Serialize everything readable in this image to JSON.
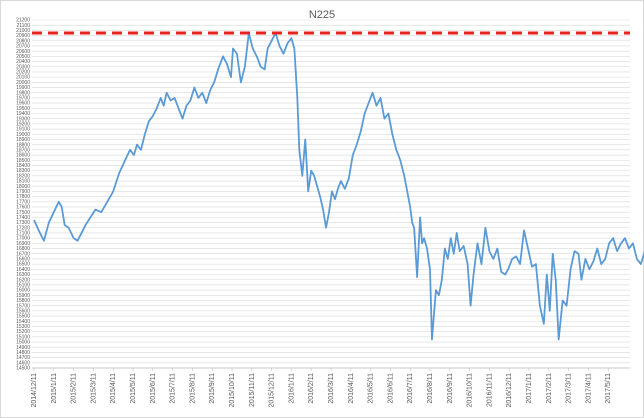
{
  "chart_data": {
    "type": "line",
    "title": "N225",
    "xlabel": "",
    "ylabel": "",
    "ylim": [
      14500,
      21200
    ],
    "y_tick_step": 100,
    "x_tick_labels": [
      "2014/12/11",
      "2015/1/11",
      "2015/2/11",
      "2015/3/11",
      "2015/4/11",
      "2015/5/11",
      "2015/6/11",
      "2015/7/11",
      "2015/8/11",
      "2015/9/11",
      "2015/10/11",
      "2015/11/11",
      "2015/12/11",
      "2016/1/11",
      "2016/2/11",
      "2016/3/11",
      "2016/4/11",
      "2016/5/11",
      "2016/6/11",
      "2016/7/11",
      "2016/8/11",
      "2016/9/11",
      "2016/10/11",
      "2016/11/11",
      "2016/12/11",
      "2017/1/11",
      "2017/2/11",
      "2017/3/11",
      "2017/4/11",
      "2017/5/11"
    ],
    "grid": true,
    "legend": "none",
    "reference_line": {
      "value": 20950,
      "color": "#e8231f",
      "style": "dashed"
    },
    "series": [
      {
        "color": "#5b9bd5",
        "points": [
          [
            0.0,
            17350
          ],
          [
            0.3,
            17100
          ],
          [
            0.5,
            16950
          ],
          [
            0.75,
            17300
          ],
          [
            1.0,
            17500
          ],
          [
            1.25,
            17700
          ],
          [
            1.4,
            17600
          ],
          [
            1.55,
            17250
          ],
          [
            1.75,
            17200
          ],
          [
            2.0,
            17000
          ],
          [
            2.2,
            16950
          ],
          [
            2.4,
            17100
          ],
          [
            2.6,
            17250
          ],
          [
            2.85,
            17400
          ],
          [
            3.1,
            17550
          ],
          [
            3.4,
            17500
          ],
          [
            3.7,
            17700
          ],
          [
            4.0,
            17900
          ],
          [
            4.3,
            18250
          ],
          [
            4.6,
            18500
          ],
          [
            4.85,
            18700
          ],
          [
            5.05,
            18600
          ],
          [
            5.2,
            18800
          ],
          [
            5.4,
            18700
          ],
          [
            5.6,
            19000
          ],
          [
            5.8,
            19250
          ],
          [
            6.0,
            19350
          ],
          [
            6.2,
            19500
          ],
          [
            6.4,
            19700
          ],
          [
            6.55,
            19550
          ],
          [
            6.7,
            19800
          ],
          [
            6.9,
            19650
          ],
          [
            7.1,
            19700
          ],
          [
            7.3,
            19500
          ],
          [
            7.5,
            19300
          ],
          [
            7.7,
            19550
          ],
          [
            7.9,
            19650
          ],
          [
            8.1,
            19900
          ],
          [
            8.3,
            19700
          ],
          [
            8.5,
            19800
          ],
          [
            8.7,
            19600
          ],
          [
            8.9,
            19850
          ],
          [
            9.1,
            20000
          ],
          [
            9.3,
            20250
          ],
          [
            9.55,
            20500
          ],
          [
            9.75,
            20350
          ],
          [
            9.95,
            20100
          ],
          [
            10.05,
            20650
          ],
          [
            10.25,
            20550
          ],
          [
            10.45,
            20000
          ],
          [
            10.65,
            20300
          ],
          [
            10.85,
            20950
          ],
          [
            11.05,
            20650
          ],
          [
            11.25,
            20500
          ],
          [
            11.45,
            20300
          ],
          [
            11.65,
            20250
          ],
          [
            11.8,
            20650
          ],
          [
            12.0,
            20800
          ],
          [
            12.2,
            20950
          ],
          [
            12.4,
            20700
          ],
          [
            12.6,
            20550
          ],
          [
            12.8,
            20750
          ],
          [
            13.0,
            20850
          ],
          [
            13.15,
            20650
          ],
          [
            13.3,
            19700
          ],
          [
            13.4,
            18700
          ],
          [
            13.55,
            18200
          ],
          [
            13.7,
            18900
          ],
          [
            13.85,
            17900
          ],
          [
            14.0,
            18300
          ],
          [
            14.15,
            18200
          ],
          [
            14.3,
            18000
          ],
          [
            14.45,
            17800
          ],
          [
            14.6,
            17550
          ],
          [
            14.75,
            17200
          ],
          [
            14.9,
            17500
          ],
          [
            15.05,
            17900
          ],
          [
            15.2,
            17750
          ],
          [
            15.35,
            17950
          ],
          [
            15.5,
            18100
          ],
          [
            15.7,
            17950
          ],
          [
            15.9,
            18150
          ],
          [
            16.1,
            18600
          ],
          [
            16.3,
            18800
          ],
          [
            16.5,
            19050
          ],
          [
            16.7,
            19400
          ],
          [
            16.9,
            19600
          ],
          [
            17.1,
            19800
          ],
          [
            17.3,
            19550
          ],
          [
            17.5,
            19700
          ],
          [
            17.7,
            19300
          ],
          [
            17.9,
            19400
          ],
          [
            18.1,
            19000
          ],
          [
            18.3,
            18700
          ],
          [
            18.5,
            18500
          ],
          [
            18.7,
            18200
          ],
          [
            18.85,
            17900
          ],
          [
            19.0,
            17600
          ],
          [
            19.1,
            17300
          ],
          [
            19.2,
            17200
          ],
          [
            19.35,
            16250
          ],
          [
            19.5,
            17400
          ],
          [
            19.6,
            16900
          ],
          [
            19.7,
            17000
          ],
          [
            19.85,
            16800
          ],
          [
            20.0,
            16400
          ],
          [
            20.1,
            15050
          ],
          [
            20.3,
            16000
          ],
          [
            20.45,
            15900
          ],
          [
            20.6,
            16200
          ],
          [
            20.75,
            16800
          ],
          [
            20.9,
            16600
          ],
          [
            21.05,
            17000
          ],
          [
            21.2,
            16700
          ],
          [
            21.35,
            17100
          ],
          [
            21.5,
            16750
          ],
          [
            21.7,
            16850
          ],
          [
            21.9,
            16500
          ],
          [
            22.05,
            15700
          ],
          [
            22.2,
            16300
          ],
          [
            22.4,
            16900
          ],
          [
            22.6,
            16500
          ],
          [
            22.8,
            17200
          ],
          [
            23.0,
            16750
          ],
          [
            23.2,
            16600
          ],
          [
            23.4,
            16800
          ],
          [
            23.6,
            16350
          ],
          [
            23.8,
            16300
          ],
          [
            23.95,
            16400
          ],
          [
            24.15,
            16600
          ],
          [
            24.35,
            16650
          ],
          [
            24.55,
            16500
          ],
          [
            24.75,
            17150
          ],
          [
            24.95,
            16800
          ],
          [
            25.15,
            16450
          ],
          [
            25.35,
            16500
          ],
          [
            25.55,
            15700
          ],
          [
            25.75,
            15350
          ],
          [
            25.9,
            16300
          ],
          [
            26.05,
            15600
          ],
          [
            26.2,
            16700
          ],
          [
            26.35,
            16200
          ],
          [
            26.5,
            15050
          ],
          [
            26.7,
            15800
          ],
          [
            26.9,
            15700
          ],
          [
            27.1,
            16400
          ],
          [
            27.3,
            16750
          ],
          [
            27.5,
            16700
          ],
          [
            27.65,
            16200
          ],
          [
            27.85,
            16600
          ],
          [
            28.05,
            16400
          ],
          [
            28.25,
            16550
          ],
          [
            28.45,
            16800
          ],
          [
            28.65,
            16500
          ],
          [
            28.85,
            16600
          ],
          [
            29.05,
            16900
          ],
          [
            29.25,
            17000
          ],
          [
            29.45,
            16750
          ],
          [
            29.65,
            16900
          ],
          [
            29.85,
            17000
          ],
          [
            30.05,
            16800
          ],
          [
            30.25,
            16900
          ],
          [
            30.45,
            16600
          ],
          [
            30.65,
            16500
          ],
          [
            30.85,
            16750
          ],
          [
            31.05,
            16850
          ],
          [
            31.25,
            16900
          ],
          [
            31.45,
            17050
          ],
          [
            31.65,
            17150
          ],
          [
            31.85,
            16950
          ],
          [
            32.05,
            16750
          ],
          [
            32.25,
            16800
          ],
          [
            32.45,
            16900
          ],
          [
            32.65,
            17000
          ],
          [
            32.85,
            17250
          ],
          [
            33.05,
            17450
          ],
          [
            33.25,
            17400
          ],
          [
            33.45,
            16900
          ],
          [
            33.55,
            16150
          ],
          [
            33.65,
            17500
          ],
          [
            33.85,
            17700
          ],
          [
            34.05,
            17800
          ],
          [
            34.25,
            18150
          ],
          [
            34.45,
            18400
          ],
          [
            34.65,
            18300
          ],
          [
            34.85,
            18550
          ],
          [
            35.05,
            18700
          ],
          [
            35.25,
            19000
          ],
          [
            35.45,
            19250
          ],
          [
            35.65,
            19300
          ],
          [
            35.85,
            19450
          ],
          [
            36.05,
            19350
          ],
          [
            36.25,
            19400
          ],
          [
            36.45,
            19250
          ],
          [
            36.65,
            19200
          ],
          [
            36.85,
            19450
          ],
          [
            37.05,
            19100
          ],
          [
            37.25,
            19300
          ],
          [
            37.45,
            19050
          ],
          [
            37.65,
            19400
          ],
          [
            37.85,
            19150
          ],
          [
            38.05,
            19250
          ],
          [
            38.25,
            19500
          ],
          [
            38.45,
            19350
          ],
          [
            38.65,
            19100
          ],
          [
            38.85,
            19300
          ],
          [
            39.05,
            19200
          ],
          [
            39.25,
            19350
          ],
          [
            39.45,
            19150
          ],
          [
            39.65,
            19300
          ],
          [
            39.85,
            19450
          ],
          [
            40.05,
            19200
          ],
          [
            40.25,
            19250
          ],
          [
            40.45,
            19050
          ],
          [
            40.65,
            19300
          ],
          [
            40.85,
            19400
          ],
          [
            41.05,
            19150
          ],
          [
            41.25,
            19250
          ],
          [
            41.45,
            19100
          ],
          [
            41.65,
            18900
          ],
          [
            41.85,
            18950
          ],
          [
            42.05,
            18700
          ],
          [
            42.25,
            18550
          ],
          [
            42.45,
            18600
          ],
          [
            42.65,
            18800
          ],
          [
            42.85,
            19100
          ],
          [
            43.05,
            19300
          ],
          [
            43.25,
            19550
          ],
          [
            43.45,
            19800
          ],
          [
            43.65,
            19700
          ],
          [
            43.85,
            19650
          ],
          [
            44.05,
            19700
          ],
          [
            44.25,
            19450
          ],
          [
            44.45,
            19500
          ],
          [
            44.65,
            19600
          ],
          [
            44.85,
            19550
          ]
        ]
      }
    ]
  }
}
